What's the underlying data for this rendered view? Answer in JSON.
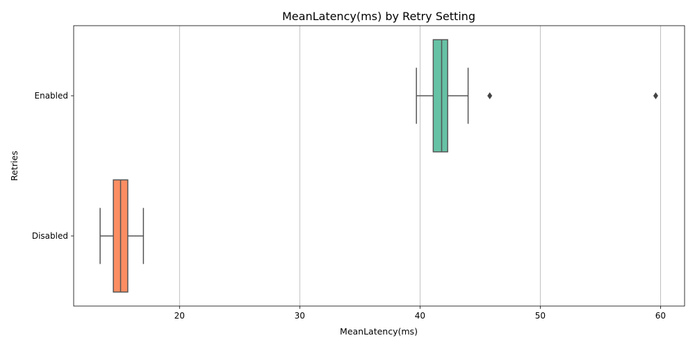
{
  "chart_data": {
    "type": "boxplot",
    "orientation": "horizontal",
    "title": "MeanLatency(ms) by Retry Setting",
    "xlabel": "MeanLatency(ms)",
    "ylabel": "Retries",
    "xlim": [
      11.2,
      62.0
    ],
    "xticks": [
      20,
      30,
      40,
      50,
      60
    ],
    "grid": "vertical",
    "boxes": [
      {
        "category": "Enabled",
        "whisker_low": 39.7,
        "q1": 41.1,
        "median": 41.8,
        "q3": 42.3,
        "whisker_high": 44.0,
        "outliers": [
          45.8,
          59.6
        ],
        "color": "#66c2a5"
      },
      {
        "category": "Disabled",
        "whisker_low": 13.4,
        "q1": 14.5,
        "median": 15.1,
        "q3": 15.7,
        "whisker_high": 17.0,
        "outliers": [],
        "color": "#fc8d62"
      }
    ]
  }
}
